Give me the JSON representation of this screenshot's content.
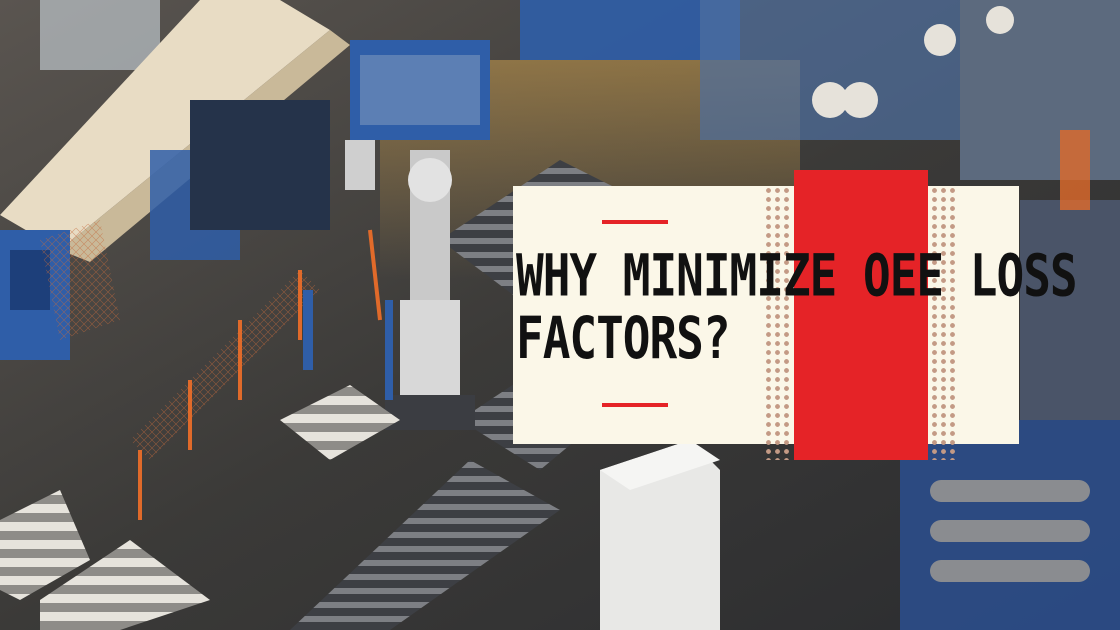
{
  "headline": {
    "line1": "WHY MINIMIZE OEE LOSS",
    "line2": "FACTORS?"
  },
  "colors": {
    "accent_red": "#e52327",
    "card_background": "#fbf7e8",
    "dot_pattern": "#c49a85",
    "headline_text": "#111111",
    "machinery_blue": "#2f5ea8",
    "floor_gray": "#3a3c40"
  }
}
